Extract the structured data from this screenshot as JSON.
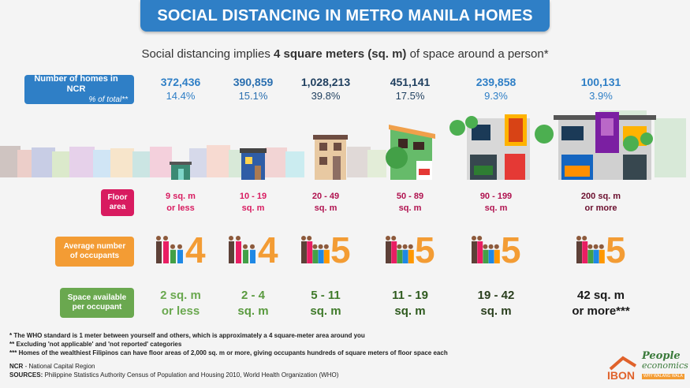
{
  "title": "SOCIAL DISTANCING IN METRO MANILA HOMES",
  "subtitle_pre": "Social distancing implies ",
  "subtitle_bold": "4 square meters (sq. m)",
  "subtitle_post": " of space around a person*",
  "labels": {
    "homes": "Number of homes in NCR",
    "homes_sub": "% of total**",
    "floor_1": "Floor",
    "floor_2": "area",
    "occ_1": "Average number",
    "occ_2": "of occupants",
    "space_1": "Space available",
    "space_2": "per occupant"
  },
  "chart_data": {
    "type": "table",
    "columns": [
      {
        "homes": "372,436",
        "percent": "14.4%",
        "floor_1": "9 sq. m",
        "floor_2": "or less",
        "occupants": "4",
        "space_1": "2 sq. m",
        "space_2": "or less",
        "color": "#2f7fc6"
      },
      {
        "homes": "390,859",
        "percent": "15.1%",
        "floor_1": "10 - 19",
        "floor_2": "sq. m",
        "occupants": "4",
        "space_1": "2 - 4",
        "space_2": "sq. m",
        "color": "#2a6fb0"
      },
      {
        "homes": "1,028,213",
        "percent": "39.8%",
        "floor_1": "20 - 49",
        "floor_2": "sq. m",
        "occupants": "5",
        "space_1": "5 - 11",
        "space_2": "sq. m",
        "color": "#1f3f5f"
      },
      {
        "homes": "451,141",
        "percent": "17.5%",
        "floor_1": "50 - 89",
        "floor_2": "sq. m",
        "occupants": "5",
        "space_1": "11 - 19",
        "space_2": "sq. m",
        "color": "#1f3f5f"
      },
      {
        "homes": "239,858",
        "percent": "9.3%",
        "floor_1": "90 - 199",
        "floor_2": "sq. m",
        "occupants": "5",
        "space_1": "19 - 42",
        "space_2": "sq. m",
        "color": "#2f7fc6"
      },
      {
        "homes": "100,131",
        "percent": "3.9%",
        "floor_1": "200 sq. m",
        "floor_2": "or more",
        "occupants": "5",
        "space_1": "42 sq. m",
        "space_2": "or more***",
        "color": "#2f7fc6"
      }
    ]
  },
  "footnotes": [
    "* The WHO standard is 1 meter between yourself and others, which is approximately a 4 square-meter area around you",
    "** Excluding 'not applicable' and 'not reported' categories",
    "*** Homes of the wealthiest Filipinos can have floor areas of 2,000 sq. m or more, giving occupants hundreds of square meters of floor space each"
  ],
  "source": {
    "ncr_label": "NCR",
    "ncr_text": " - National Capital Region",
    "sources_label": "SOURCES:",
    "sources_text": " Philippine Statistics Authority Census of Population and Housing 2010, World Health Organization (WHO)"
  },
  "logos": {
    "ibon": "IBON",
    "people_1": "People",
    "people_2": "economics",
    "tag": "WHY WALANG WALA"
  },
  "colors": {
    "title_bg": "#2f7fc6",
    "floor": "#d81b60",
    "occupants": "#f39c34",
    "space": "#6aa84f"
  }
}
